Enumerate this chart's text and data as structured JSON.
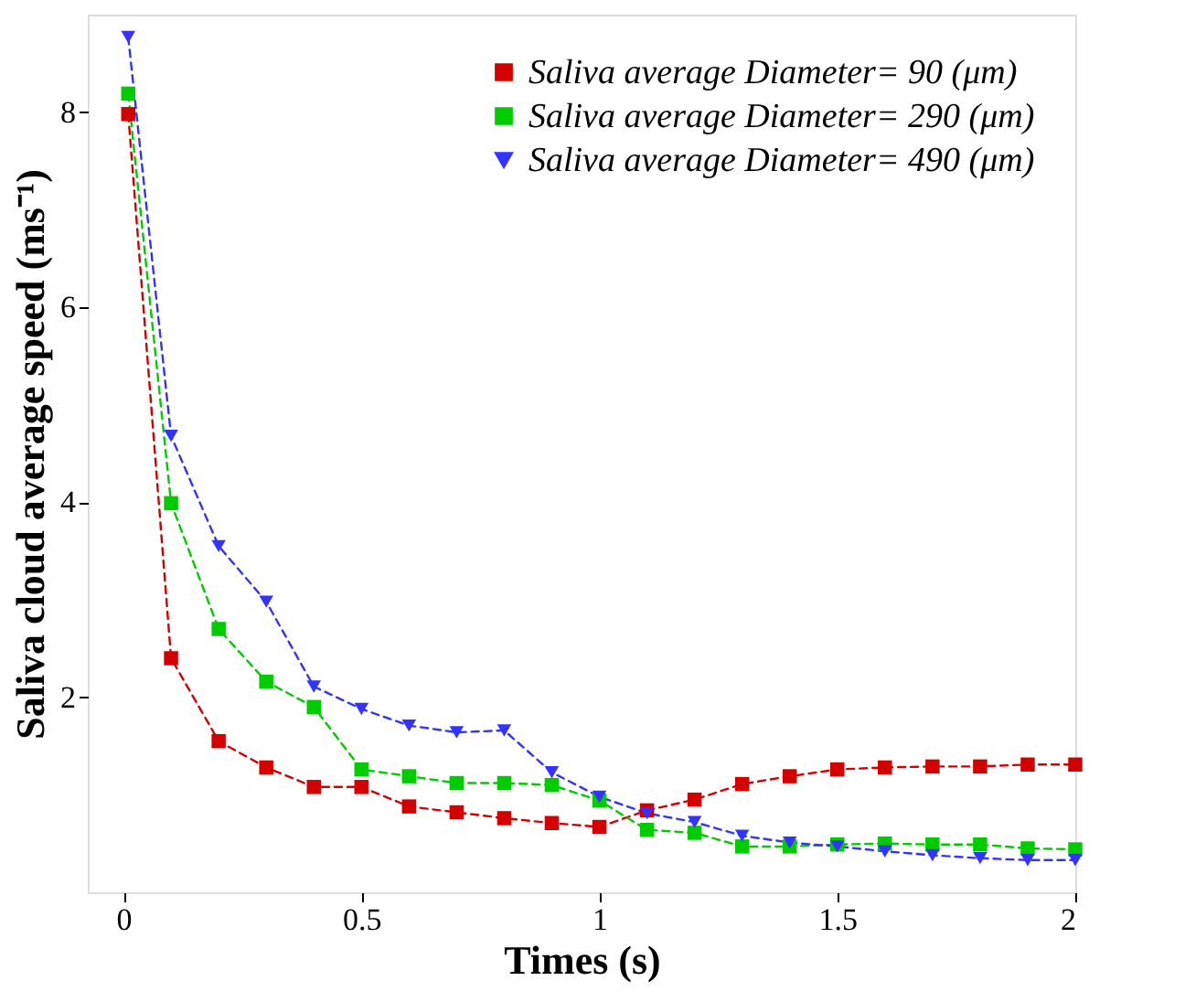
{
  "chart_data": {
    "type": "line",
    "xlabel": "Times (s)",
    "ylabel": "Saliva cloud average speed (ms⁻¹)",
    "x": [
      0.01,
      0.1,
      0.2,
      0.3,
      0.4,
      0.5,
      0.6,
      0.7,
      0.8,
      0.9,
      1.0,
      1.1,
      1.2,
      1.3,
      1.4,
      1.5,
      1.6,
      1.7,
      1.8,
      1.9,
      2.0
    ],
    "series": [
      {
        "name": "Saliva average Diameter= 90 (μm)",
        "color": "#d40000",
        "marker": "square",
        "values": [
          7.98,
          2.4,
          1.55,
          1.28,
          1.08,
          1.08,
          0.88,
          0.82,
          0.76,
          0.71,
          0.67,
          0.84,
          0.95,
          1.11,
          1.19,
          1.26,
          1.28,
          1.29,
          1.29,
          1.31,
          1.31
        ]
      },
      {
        "name": "Saliva average Diameter= 290 (μm)",
        "color": "#00cc00",
        "marker": "square",
        "values": [
          8.19,
          3.99,
          2.7,
          2.16,
          1.9,
          1.26,
          1.19,
          1.12,
          1.12,
          1.1,
          0.94,
          0.64,
          0.61,
          0.47,
          0.47,
          0.49,
          0.5,
          0.49,
          0.49,
          0.45,
          0.44
        ]
      },
      {
        "name": "Saliva average Diameter= 490 (μm)",
        "color": "#3333ff",
        "marker": "triangle",
        "values": [
          8.77,
          4.68,
          3.55,
          2.98,
          2.11,
          1.88,
          1.71,
          1.64,
          1.66,
          1.23,
          0.98,
          0.81,
          0.72,
          0.58,
          0.51,
          0.47,
          0.42,
          0.38,
          0.35,
          0.33,
          0.33
        ]
      }
    ],
    "xlim": [
      -0.075,
      2
    ],
    "xticks": [
      0,
      0.5,
      1,
      1.5,
      2
    ],
    "ylim": [
      0,
      9
    ],
    "yticks": [
      2,
      4,
      6,
      8
    ],
    "grid": false,
    "legend": "top right",
    "line_style": "dashed"
  }
}
